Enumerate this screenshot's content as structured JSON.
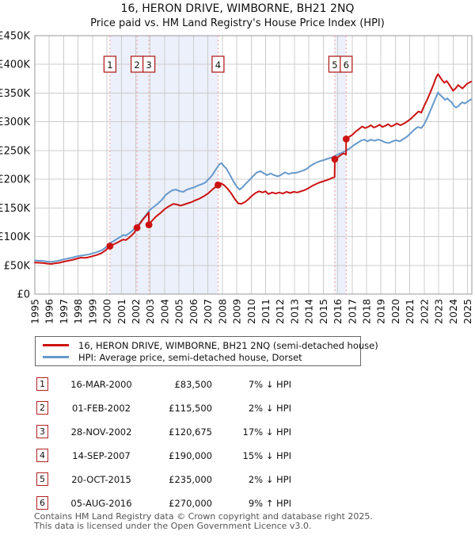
{
  "chart_data": {
    "type": "line",
    "title": "16, HERON DRIVE, WIMBORNE, BH21 2NQ",
    "subtitle": "Price paid vs. HM Land Registry's House Price Index (HPI)",
    "x_range": [
      1995,
      2025.3
    ],
    "y_range_gbp": [
      0,
      450000
    ],
    "points_unit": "GBP thousands",
    "grid": true,
    "legend_position": "bottom",
    "y_ticks": [
      {
        "label": "£0",
        "value_k": 0
      },
      {
        "label": "£50K",
        "value_k": 50
      },
      {
        "label": "£100K",
        "value_k": 100
      },
      {
        "label": "£150K",
        "value_k": 150
      },
      {
        "label": "£200K",
        "value_k": 200
      },
      {
        "label": "£250K",
        "value_k": 250
      },
      {
        "label": "£300K",
        "value_k": 300
      },
      {
        "label": "£350K",
        "value_k": 350
      },
      {
        "label": "£400K",
        "value_k": 400
      },
      {
        "label": "£450K",
        "value_k": 450
      }
    ],
    "x_ticks": [
      1995,
      1996,
      1997,
      1998,
      1999,
      2000,
      2001,
      2002,
      2003,
      2004,
      2005,
      2006,
      2007,
      2008,
      2009,
      2010,
      2011,
      2012,
      2013,
      2014,
      2015,
      2016,
      2017,
      2018,
      2019,
      2020,
      2021,
      2022,
      2023,
      2024,
      2025
    ],
    "ownership_bands": [
      [
        2000.21,
        2007.7
      ],
      [
        2015.8,
        2016.59
      ]
    ],
    "series": [
      {
        "name": "16, HERON DRIVE, WIMBORNE, BH21 2NQ (semi-detached house)",
        "color": "#cc1111",
        "points": [
          [
            1995.0,
            55
          ],
          [
            1995.3,
            54.5
          ],
          [
            1995.6,
            54
          ],
          [
            1995.9,
            53
          ],
          [
            1996.15,
            52.5
          ],
          [
            1996.4,
            53.5
          ],
          [
            1996.7,
            54.5
          ],
          [
            1997.0,
            56.5
          ],
          [
            1997.3,
            58
          ],
          [
            1997.6,
            59.5
          ],
          [
            1997.9,
            61.5
          ],
          [
            1998.2,
            63.5
          ],
          [
            1998.45,
            63
          ],
          [
            1998.7,
            64
          ],
          [
            1999.0,
            66
          ],
          [
            1999.3,
            68
          ],
          [
            1999.6,
            71
          ],
          [
            1999.9,
            76
          ],
          [
            2000.21,
            83.5
          ],
          [
            2000.5,
            87
          ],
          [
            2000.75,
            90
          ],
          [
            2001.0,
            93.5
          ],
          [
            2001.15,
            95
          ],
          [
            2001.3,
            94
          ],
          [
            2001.5,
            97.5
          ],
          [
            2001.7,
            102
          ],
          [
            2001.9,
            107
          ],
          [
            2002.085,
            115.5
          ],
          [
            2002.3,
            123
          ],
          [
            2002.5,
            130
          ],
          [
            2002.7,
            136
          ],
          [
            2002.9,
            142
          ],
          [
            2002.908,
            120.675
          ],
          [
            2003.1,
            127
          ],
          [
            2003.4,
            135
          ],
          [
            2003.7,
            141
          ],
          [
            2004.0,
            148
          ],
          [
            2004.3,
            153
          ],
          [
            2004.6,
            157
          ],
          [
            2004.85,
            156
          ],
          [
            2005.1,
            154
          ],
          [
            2005.35,
            156
          ],
          [
            2005.6,
            158
          ],
          [
            2005.85,
            160
          ],
          [
            2006.1,
            163
          ],
          [
            2006.4,
            166
          ],
          [
            2006.7,
            170
          ],
          [
            2007.0,
            175
          ],
          [
            2007.3,
            182
          ],
          [
            2007.5,
            186
          ],
          [
            2007.7,
            190
          ],
          [
            2007.9,
            193
          ],
          [
            2008.1,
            190
          ],
          [
            2008.35,
            184
          ],
          [
            2008.6,
            176
          ],
          [
            2008.85,
            166
          ],
          [
            2009.1,
            158
          ],
          [
            2009.3,
            157
          ],
          [
            2009.55,
            160
          ],
          [
            2009.8,
            165
          ],
          [
            2010.05,
            171
          ],
          [
            2010.3,
            176
          ],
          [
            2010.55,
            179
          ],
          [
            2010.8,
            177
          ],
          [
            2011.0,
            179
          ],
          [
            2011.2,
            174
          ],
          [
            2011.45,
            177
          ],
          [
            2011.7,
            175
          ],
          [
            2011.95,
            177
          ],
          [
            2012.2,
            175
          ],
          [
            2012.45,
            178
          ],
          [
            2012.7,
            176
          ],
          [
            2012.95,
            178
          ],
          [
            2013.2,
            177
          ],
          [
            2013.45,
            179
          ],
          [
            2013.7,
            181
          ],
          [
            2013.95,
            184
          ],
          [
            2014.2,
            188
          ],
          [
            2014.45,
            191
          ],
          [
            2014.7,
            194
          ],
          [
            2014.95,
            196
          ],
          [
            2015.2,
            198
          ],
          [
            2015.5,
            201
          ],
          [
            2015.79,
            204
          ],
          [
            2015.8,
            235
          ],
          [
            2016.0,
            238
          ],
          [
            2016.2,
            242
          ],
          [
            2016.4,
            245
          ],
          [
            2016.58,
            243
          ],
          [
            2016.59,
            270
          ],
          [
            2016.8,
            274
          ],
          [
            2017.0,
            277
          ],
          [
            2017.25,
            283
          ],
          [
            2017.5,
            288
          ],
          [
            2017.7,
            292
          ],
          [
            2017.9,
            289
          ],
          [
            2018.1,
            291
          ],
          [
            2018.3,
            294
          ],
          [
            2018.5,
            290
          ],
          [
            2018.7,
            292
          ],
          [
            2018.9,
            295
          ],
          [
            2019.1,
            291
          ],
          [
            2019.3,
            293
          ],
          [
            2019.5,
            296
          ],
          [
            2019.7,
            292
          ],
          [
            2019.9,
            294
          ],
          [
            2020.1,
            297
          ],
          [
            2020.35,
            294
          ],
          [
            2020.6,
            297
          ],
          [
            2020.85,
            301
          ],
          [
            2021.1,
            306
          ],
          [
            2021.35,
            312
          ],
          [
            2021.6,
            318
          ],
          [
            2021.8,
            316
          ],
          [
            2022.0,
            328
          ],
          [
            2022.2,
            338
          ],
          [
            2022.4,
            350
          ],
          [
            2022.6,
            362
          ],
          [
            2022.8,
            376
          ],
          [
            2022.95,
            383
          ],
          [
            2023.1,
            378
          ],
          [
            2023.25,
            372
          ],
          [
            2023.4,
            368
          ],
          [
            2023.55,
            371
          ],
          [
            2023.7,
            366
          ],
          [
            2023.85,
            360
          ],
          [
            2024.0,
            354
          ],
          [
            2024.2,
            359
          ],
          [
            2024.35,
            364
          ],
          [
            2024.5,
            361
          ],
          [
            2024.65,
            358
          ],
          [
            2024.8,
            362
          ],
          [
            2024.95,
            366
          ],
          [
            2025.1,
            368
          ],
          [
            2025.25,
            370
          ]
        ]
      },
      {
        "name": "HPI: Average price, semi-detached house, Dorset",
        "color": "#6699cc",
        "points": [
          [
            1995.0,
            58.5
          ],
          [
            1995.3,
            58
          ],
          [
            1995.6,
            57.5
          ],
          [
            1995.9,
            56.5
          ],
          [
            1996.15,
            56
          ],
          [
            1996.4,
            57
          ],
          [
            1996.7,
            58.5
          ],
          [
            1997.0,
            60.5
          ],
          [
            1997.3,
            62
          ],
          [
            1997.6,
            63.5
          ],
          [
            1997.9,
            65.5
          ],
          [
            1998.2,
            67
          ],
          [
            1998.5,
            68
          ],
          [
            1998.8,
            69.5
          ],
          [
            1999.1,
            71.5
          ],
          [
            1999.4,
            74
          ],
          [
            1999.7,
            77
          ],
          [
            2000.0,
            83
          ],
          [
            2000.2,
            89
          ],
          [
            2000.45,
            92
          ],
          [
            2000.7,
            96
          ],
          [
            2000.95,
            100
          ],
          [
            2001.15,
            103
          ],
          [
            2001.3,
            102
          ],
          [
            2001.5,
            105
          ],
          [
            2001.75,
            110
          ],
          [
            2002.0,
            116
          ],
          [
            2002.25,
            123
          ],
          [
            2002.5,
            131
          ],
          [
            2002.75,
            139
          ],
          [
            2002.95,
            146
          ],
          [
            2003.2,
            151
          ],
          [
            2003.5,
            157
          ],
          [
            2003.8,
            164
          ],
          [
            2004.05,
            172
          ],
          [
            2004.3,
            177
          ],
          [
            2004.55,
            181
          ],
          [
            2004.8,
            182
          ],
          [
            2005.05,
            179
          ],
          [
            2005.3,
            178
          ],
          [
            2005.55,
            182
          ],
          [
            2005.8,
            184
          ],
          [
            2006.05,
            186
          ],
          [
            2006.3,
            189
          ],
          [
            2006.55,
            191
          ],
          [
            2006.8,
            194
          ],
          [
            2007.05,
            200
          ],
          [
            2007.3,
            207
          ],
          [
            2007.55,
            217
          ],
          [
            2007.8,
            226
          ],
          [
            2007.95,
            228
          ],
          [
            2008.1,
            223
          ],
          [
            2008.3,
            218
          ],
          [
            2008.5,
            209
          ],
          [
            2008.75,
            197
          ],
          [
            2009.0,
            187
          ],
          [
            2009.2,
            182
          ],
          [
            2009.4,
            186
          ],
          [
            2009.65,
            193
          ],
          [
            2009.9,
            199
          ],
          [
            2010.15,
            206
          ],
          [
            2010.4,
            212
          ],
          [
            2010.65,
            214
          ],
          [
            2010.9,
            210
          ],
          [
            2011.1,
            207
          ],
          [
            2011.35,
            210
          ],
          [
            2011.6,
            207
          ],
          [
            2011.85,
            205
          ],
          [
            2012.1,
            208
          ],
          [
            2012.35,
            212
          ],
          [
            2012.6,
            209
          ],
          [
            2012.85,
            211
          ],
          [
            2013.1,
            211
          ],
          [
            2013.35,
            213
          ],
          [
            2013.6,
            215
          ],
          [
            2013.85,
            218
          ],
          [
            2014.1,
            223
          ],
          [
            2014.35,
            227
          ],
          [
            2014.6,
            230
          ],
          [
            2014.85,
            232
          ],
          [
            2015.1,
            234
          ],
          [
            2015.35,
            236
          ],
          [
            2015.6,
            238
          ],
          [
            2015.85,
            241
          ],
          [
            2016.1,
            244
          ],
          [
            2016.35,
            247
          ],
          [
            2016.6,
            250
          ],
          [
            2016.85,
            254
          ],
          [
            2017.1,
            259
          ],
          [
            2017.35,
            263
          ],
          [
            2017.6,
            267
          ],
          [
            2017.85,
            269
          ],
          [
            2018.05,
            266
          ],
          [
            2018.3,
            269
          ],
          [
            2018.55,
            267
          ],
          [
            2018.8,
            269
          ],
          [
            2019.05,
            267
          ],
          [
            2019.3,
            264
          ],
          [
            2019.55,
            263
          ],
          [
            2019.8,
            266
          ],
          [
            2020.05,
            268
          ],
          [
            2020.3,
            266
          ],
          [
            2020.55,
            270
          ],
          [
            2020.8,
            274
          ],
          [
            2021.05,
            280
          ],
          [
            2021.3,
            286
          ],
          [
            2021.55,
            291
          ],
          [
            2021.8,
            289
          ],
          [
            2022.0,
            296
          ],
          [
            2022.2,
            306
          ],
          [
            2022.4,
            318
          ],
          [
            2022.6,
            330
          ],
          [
            2022.8,
            342
          ],
          [
            2022.95,
            351
          ],
          [
            2023.1,
            347
          ],
          [
            2023.3,
            342
          ],
          [
            2023.45,
            338
          ],
          [
            2023.6,
            341
          ],
          [
            2023.75,
            337
          ],
          [
            2023.9,
            334
          ],
          [
            2024.05,
            328
          ],
          [
            2024.2,
            325
          ],
          [
            2024.35,
            327
          ],
          [
            2024.5,
            331
          ],
          [
            2024.65,
            334
          ],
          [
            2024.8,
            332
          ],
          [
            2024.95,
            334
          ],
          [
            2025.1,
            337
          ],
          [
            2025.25,
            339
          ]
        ]
      }
    ],
    "sales": [
      {
        "num": "1",
        "date": "16-MAR-2000",
        "price": "£83,500",
        "hpi_rel": "7% ↓ HPI",
        "year": 2000.21,
        "value_k": 83.5
      },
      {
        "num": "2",
        "date": "01-FEB-2002",
        "price": "£115,500",
        "hpi_rel": "2% ↓ HPI",
        "year": 2002.085,
        "value_k": 115.5
      },
      {
        "num": "3",
        "date": "28-NOV-2002",
        "price": "£120,675",
        "hpi_rel": "17% ↓ HPI",
        "year": 2002.908,
        "value_k": 120.675
      },
      {
        "num": "4",
        "date": "14-SEP-2007",
        "price": "£190,000",
        "hpi_rel": "15% ↓ HPI",
        "year": 2007.7,
        "value_k": 190
      },
      {
        "num": "5",
        "date": "20-OCT-2015",
        "price": "£235,000",
        "hpi_rel": "2% ↓ HPI",
        "year": 2015.8,
        "value_k": 235
      },
      {
        "num": "6",
        "date": "05-AUG-2016",
        "price": "£270,000",
        "hpi_rel": "9% ↑ HPI",
        "year": 2016.59,
        "value_k": 270
      }
    ]
  },
  "colors": {
    "property_line": "#cc1111",
    "hpi_line": "#6699cc",
    "sale_marker_border": "#b22222",
    "sale_dashed_line": "#f29999",
    "ownership_band": "#ecf0fa",
    "grid": "#cccccc",
    "plot_border": "#999999"
  },
  "footer": {
    "line1": "Contains HM Land Registry data © Crown copyright and database right 2025.",
    "line2": "This data is licensed under the Open Government Licence v3.0."
  }
}
